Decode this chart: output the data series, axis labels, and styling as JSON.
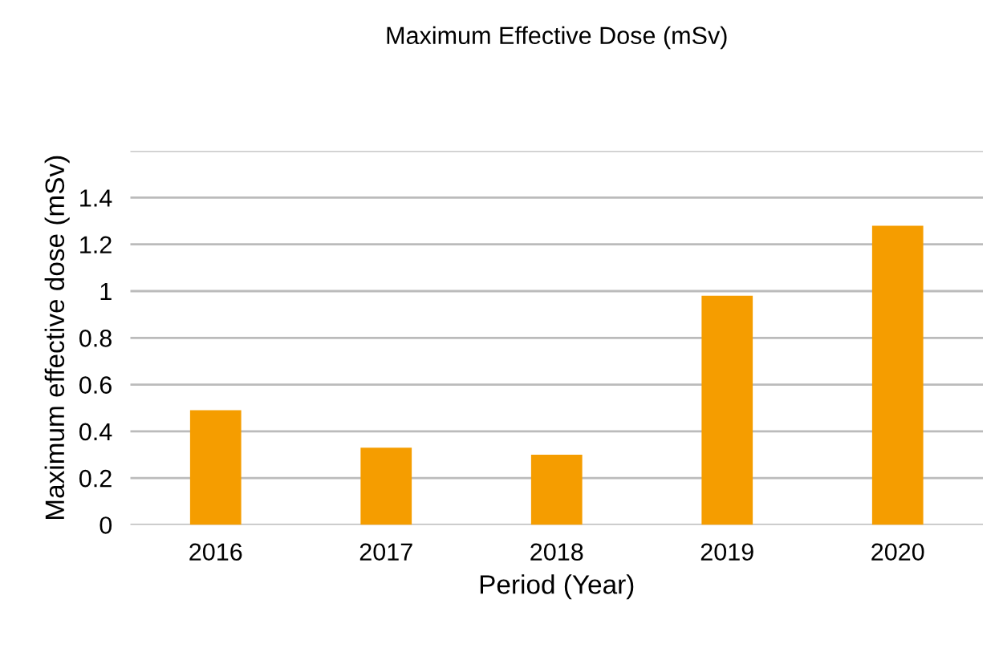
{
  "chart_data": {
    "type": "bar",
    "title": "Maximum Effective Dose (mSv)",
    "xlabel": "Period (Year)",
    "ylabel": "Maximum effective dose (mSv)",
    "categories": [
      "2016",
      "2017",
      "2018",
      "2019",
      "2020"
    ],
    "values": [
      0.49,
      0.33,
      0.3,
      0.98,
      1.28
    ],
    "color": "#f59d00",
    "ylim": [
      0,
      1.6
    ],
    "yticks": [
      {
        "value": 0,
        "label": "0"
      },
      0.2,
      0.4,
      0.6,
      0.8,
      {
        "value": 1,
        "label": "1"
      },
      1.2,
      1.4,
      {
        "value": 1.6,
        "label": null
      }
    ],
    "grid": "y"
  }
}
